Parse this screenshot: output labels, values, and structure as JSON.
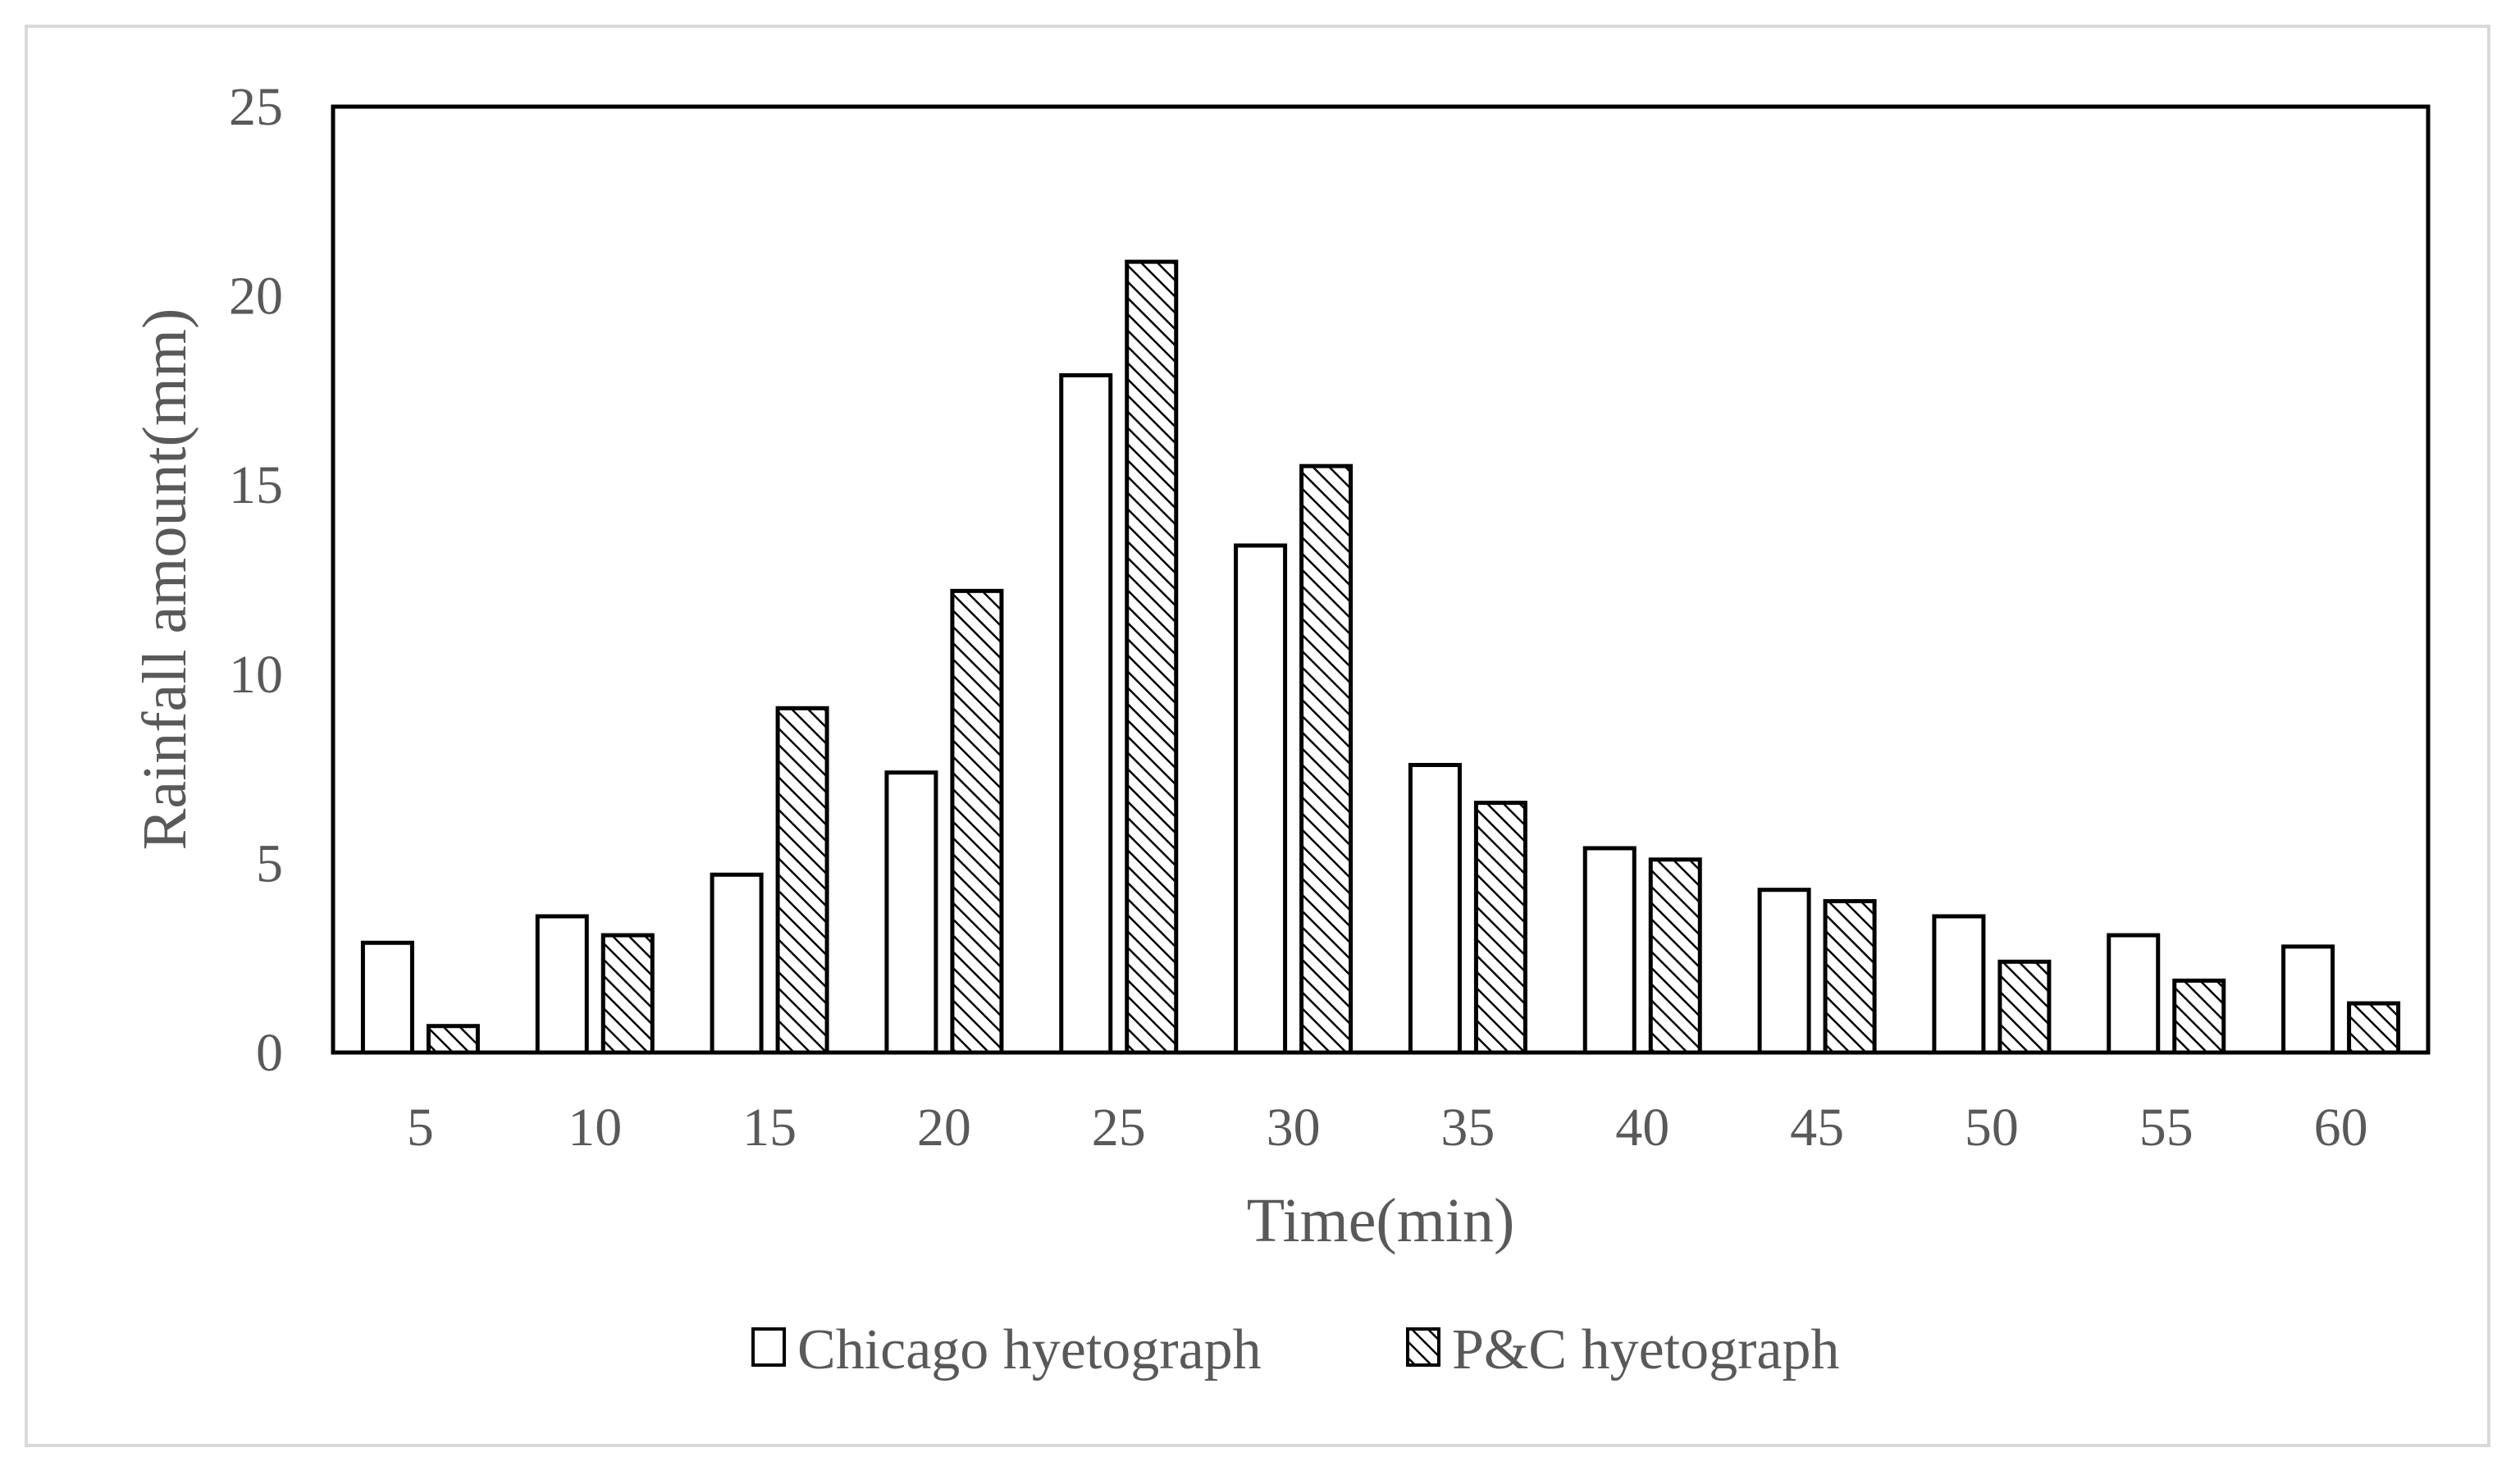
{
  "chart_data": {
    "type": "bar",
    "categories": [
      "5",
      "10",
      "15",
      "20",
      "25",
      "30",
      "35",
      "40",
      "45",
      "50",
      "55",
      "60"
    ],
    "series": [
      {
        "name": "Chicago hyetograph",
        "pattern": "none",
        "values": [
          2.9,
          3.6,
          4.7,
          7.4,
          17.9,
          13.4,
          7.6,
          5.4,
          4.3,
          3.6,
          3.1,
          2.8
        ]
      },
      {
        "name": "P&C hyetograph",
        "pattern": "diagonal-hatch",
        "values": [
          0.7,
          3.1,
          9.1,
          12.2,
          20.9,
          15.5,
          6.6,
          5.1,
          4.0,
          2.4,
          1.9,
          1.3
        ]
      }
    ],
    "xlabel": "Time(min)",
    "ylabel": "Rainfall amount(mm)",
    "ylim": [
      0,
      25
    ],
    "yticks": [
      "0",
      "5",
      "10",
      "15",
      "20",
      "25"
    ],
    "grid": false,
    "legend_position": "bottom-center",
    "colors": {
      "bar_fill": "#ffffff",
      "bar_stroke": "#000000",
      "hatch": "#000000",
      "text": "#595959",
      "frame": "#d9d9d9"
    }
  }
}
